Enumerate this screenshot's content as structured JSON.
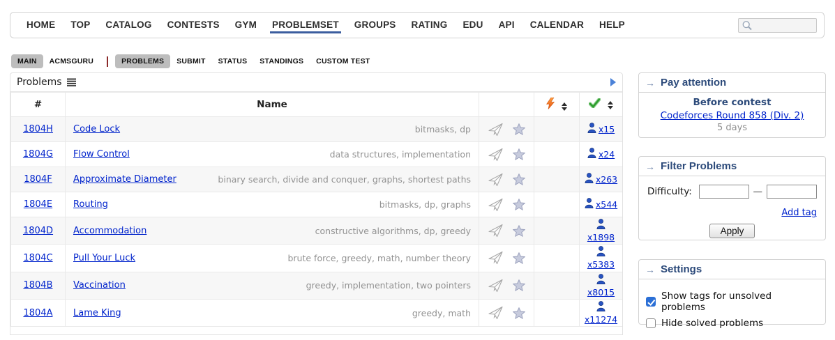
{
  "ui": {
    "caption_arrow": "→"
  },
  "nav": {
    "items": [
      {
        "label": "HOME",
        "active": false
      },
      {
        "label": "TOP",
        "active": false
      },
      {
        "label": "CATALOG",
        "active": false
      },
      {
        "label": "CONTESTS",
        "active": false
      },
      {
        "label": "GYM",
        "active": false
      },
      {
        "label": "PROBLEMSET",
        "active": true
      },
      {
        "label": "GROUPS",
        "active": false
      },
      {
        "label": "RATING",
        "active": false
      },
      {
        "label": "EDU",
        "active": false
      },
      {
        "label": "API",
        "active": false
      },
      {
        "label": "CALENDAR",
        "active": false
      },
      {
        "label": "HELP",
        "active": false
      }
    ],
    "search_value": "",
    "search_icon": "magnifier-icon"
  },
  "subnav": {
    "left_items": [
      {
        "label": "MAIN",
        "selected": true
      },
      {
        "label": "ACMSGURU",
        "selected": false
      }
    ],
    "right_items": [
      {
        "label": "PROBLEMS",
        "selected": true
      },
      {
        "label": "SUBMIT",
        "selected": false
      },
      {
        "label": "STATUS",
        "selected": false
      },
      {
        "label": "STANDINGS",
        "selected": false
      },
      {
        "label": "CUSTOM TEST",
        "selected": false
      }
    ]
  },
  "table": {
    "caption": "Problems",
    "caption_icons": [
      "list-icon",
      "expand-right-arrow-icon"
    ],
    "headers": {
      "number": "#",
      "name": "Name",
      "icons_column": "",
      "difficulty_icon": "lightning-icon",
      "solved_icon": "green-check-icon"
    },
    "rows": [
      {
        "id": "1804H",
        "name": "Code Lock",
        "tags": "bitmasks, dp",
        "difficulty": "",
        "solved": "x15"
      },
      {
        "id": "1804G",
        "name": "Flow Control",
        "tags": "data structures, implementation",
        "difficulty": "",
        "solved": "x24"
      },
      {
        "id": "1804F",
        "name": "Approximate Diameter",
        "tags": "binary search, divide and conquer, graphs, shortest paths",
        "difficulty": "",
        "solved": "x263"
      },
      {
        "id": "1804E",
        "name": "Routing",
        "tags": "bitmasks, dp, graphs",
        "difficulty": "",
        "solved": "x544"
      },
      {
        "id": "1804D",
        "name": "Accommodation",
        "tags": "constructive algorithms, dp, greedy",
        "difficulty": "",
        "solved": "x1898"
      },
      {
        "id": "1804C",
        "name": "Pull Your Luck",
        "tags": "brute force, greedy, math, number theory",
        "difficulty": "",
        "solved": "x5383"
      },
      {
        "id": "1804B",
        "name": "Vaccination",
        "tags": "greedy, implementation, two pointers",
        "difficulty": "",
        "solved": "x8015"
      },
      {
        "id": "1804A",
        "name": "Lame King",
        "tags": "greedy, math",
        "difficulty": "",
        "solved": "x11274"
      }
    ]
  },
  "sidebar": {
    "pay_attention": {
      "title": "Pay attention",
      "subtitle": "Before contest",
      "contest_link": "Codeforces Round 858 (Div. 2)",
      "countdown": "5 days"
    },
    "filter": {
      "title": "Filter Problems",
      "difficulty_label": "Difficulty:",
      "range_separator": "—",
      "min_value": "",
      "max_value": "",
      "add_tag_label": "Add tag",
      "apply_label": "Apply"
    },
    "settings": {
      "title": "Settings",
      "options": [
        {
          "label": "Show tags for unsolved problems",
          "checked": true
        },
        {
          "label": "Hide solved problems",
          "checked": false
        }
      ]
    }
  },
  "colors": {
    "link_blue": "#0023cc",
    "caption_navy": "#2c4a7a",
    "nav_underline": "#3b5d9e",
    "pill_gray": "#bdbdbd",
    "tag_gray": "#929292",
    "lightning_orange": "#ff8a1e",
    "check_green": "#2f9e2f",
    "person_blue": "#2853c2",
    "checkbox_blue": "#2b6fd6"
  }
}
